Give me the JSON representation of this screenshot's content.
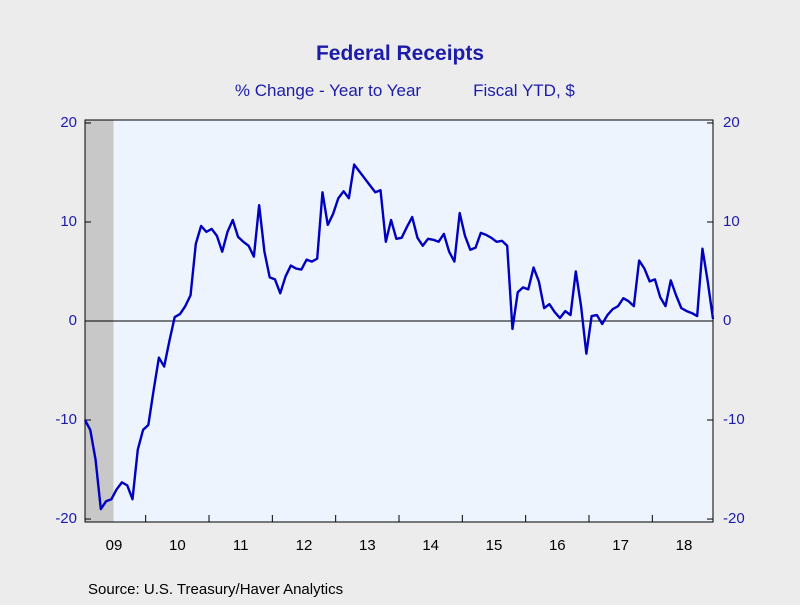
{
  "chart_data": {
    "type": "line",
    "title": "Federal Receipts",
    "subtitles": [
      "% Change - Year to Year",
      "Fiscal YTD, $"
    ],
    "source": "Source:  U.S. Treasury/Haver Analytics",
    "categories": [
      null,
      null,
      null,
      null,
      null,
      null,
      "09",
      null,
      null,
      null,
      null,
      null,
      null,
      null,
      null,
      null,
      null,
      null,
      "10",
      null,
      null,
      null,
      null,
      null,
      null,
      null,
      null,
      null,
      null,
      null,
      "11",
      null,
      null,
      null,
      null,
      null,
      null,
      null,
      null,
      null,
      null,
      null,
      "12",
      null,
      null,
      null,
      null,
      null,
      null,
      null,
      null,
      null,
      null,
      null,
      "13",
      null,
      null,
      null,
      null,
      null,
      null,
      null,
      null,
      null,
      null,
      null,
      "14",
      null,
      null,
      null,
      null,
      null,
      null,
      null,
      null,
      null,
      null,
      null,
      "15",
      null,
      null,
      null,
      null,
      null,
      null,
      null,
      null,
      null,
      null,
      null,
      "16",
      null,
      null,
      null,
      null,
      null,
      null,
      null,
      null,
      null,
      null,
      null,
      "17",
      null,
      null,
      null,
      null,
      null,
      null,
      null,
      null,
      null,
      null,
      null,
      "18",
      null,
      null,
      null,
      null,
      null
    ],
    "series": [
      {
        "color": "#0000c0",
        "values": [
          -10,
          -11,
          -14,
          -19,
          -18.2,
          -18,
          -17,
          -16.3,
          -16.6,
          -18,
          -13,
          -11,
          -10.5,
          -7,
          -3.7,
          -4.6,
          -2,
          0.4,
          0.7,
          1.5,
          2.6,
          7.8,
          9.6,
          9,
          9.3,
          8.6,
          7,
          9,
          10.2,
          8.5,
          8,
          7.6,
          6.5,
          11.7,
          7,
          4.4,
          4.2,
          2.8,
          4.5,
          5.6,
          5.3,
          5.2,
          6.2,
          6,
          6.3,
          13,
          9.7,
          10.8,
          12.4,
          13.1,
          12.4,
          15.8,
          15.1,
          14.4,
          13.7,
          13,
          13.2,
          8,
          10.2,
          8.3,
          8.4,
          9.5,
          10.5,
          8.4,
          7.6,
          8.3,
          8.2,
          8,
          8.8,
          7,
          6,
          10.9,
          8.6,
          7.2,
          7.4,
          8.9,
          8.7,
          8.4,
          8,
          8.1,
          7.6,
          -0.8,
          2.9,
          3.4,
          3.2,
          5.4,
          4,
          1.3,
          1.7,
          0.9,
          0.3,
          1,
          0.6,
          5,
          1.5,
          -3.3,
          0.5,
          0.6,
          -0.3,
          0.6,
          1.2,
          1.5,
          2.3,
          2,
          1.5,
          6.1,
          5.3,
          4,
          4.2,
          2.4,
          1.5,
          4.1,
          2.6,
          1.3,
          1,
          0.8,
          0.5,
          7.3,
          4,
          0.2
        ]
      }
    ],
    "ylim": [
      -20.3,
      20.3
    ],
    "yticks": [
      -20,
      -10,
      0,
      10,
      20
    ],
    "zero_line": true
  }
}
